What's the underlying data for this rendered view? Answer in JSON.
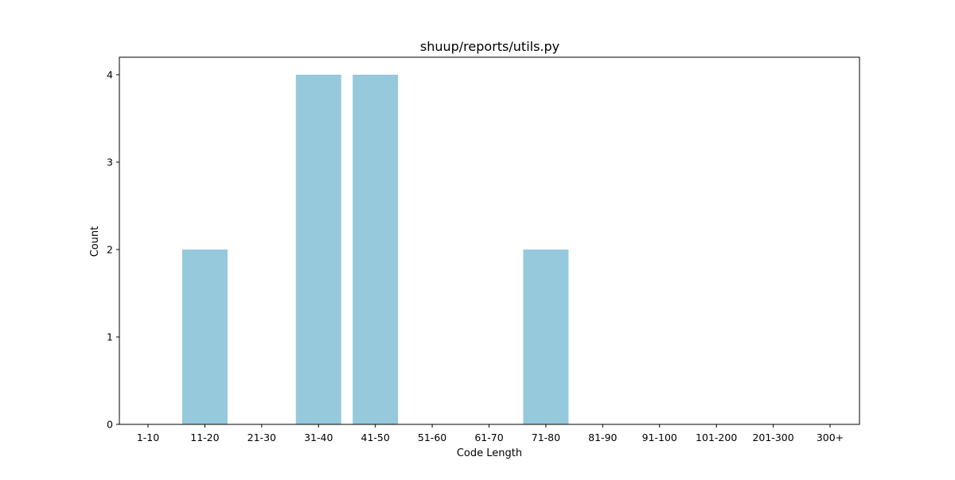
{
  "chart_data": {
    "type": "bar",
    "title": "shuup/reports/utils.py",
    "xlabel": "Code Length",
    "ylabel": "Count",
    "categories": [
      "1-10",
      "11-20",
      "21-30",
      "31-40",
      "41-50",
      "51-60",
      "61-70",
      "71-80",
      "81-90",
      "91-100",
      "101-200",
      "201-300",
      "300+"
    ],
    "values": [
      0,
      2,
      0,
      4,
      4,
      0,
      0,
      2,
      0,
      0,
      0,
      0,
      0
    ],
    "ylim": [
      0,
      4.2
    ],
    "yticks": [
      "0",
      "1",
      "2",
      "3",
      "4"
    ],
    "grid": false,
    "legend": "none",
    "bar_color": "#96c9dc"
  }
}
